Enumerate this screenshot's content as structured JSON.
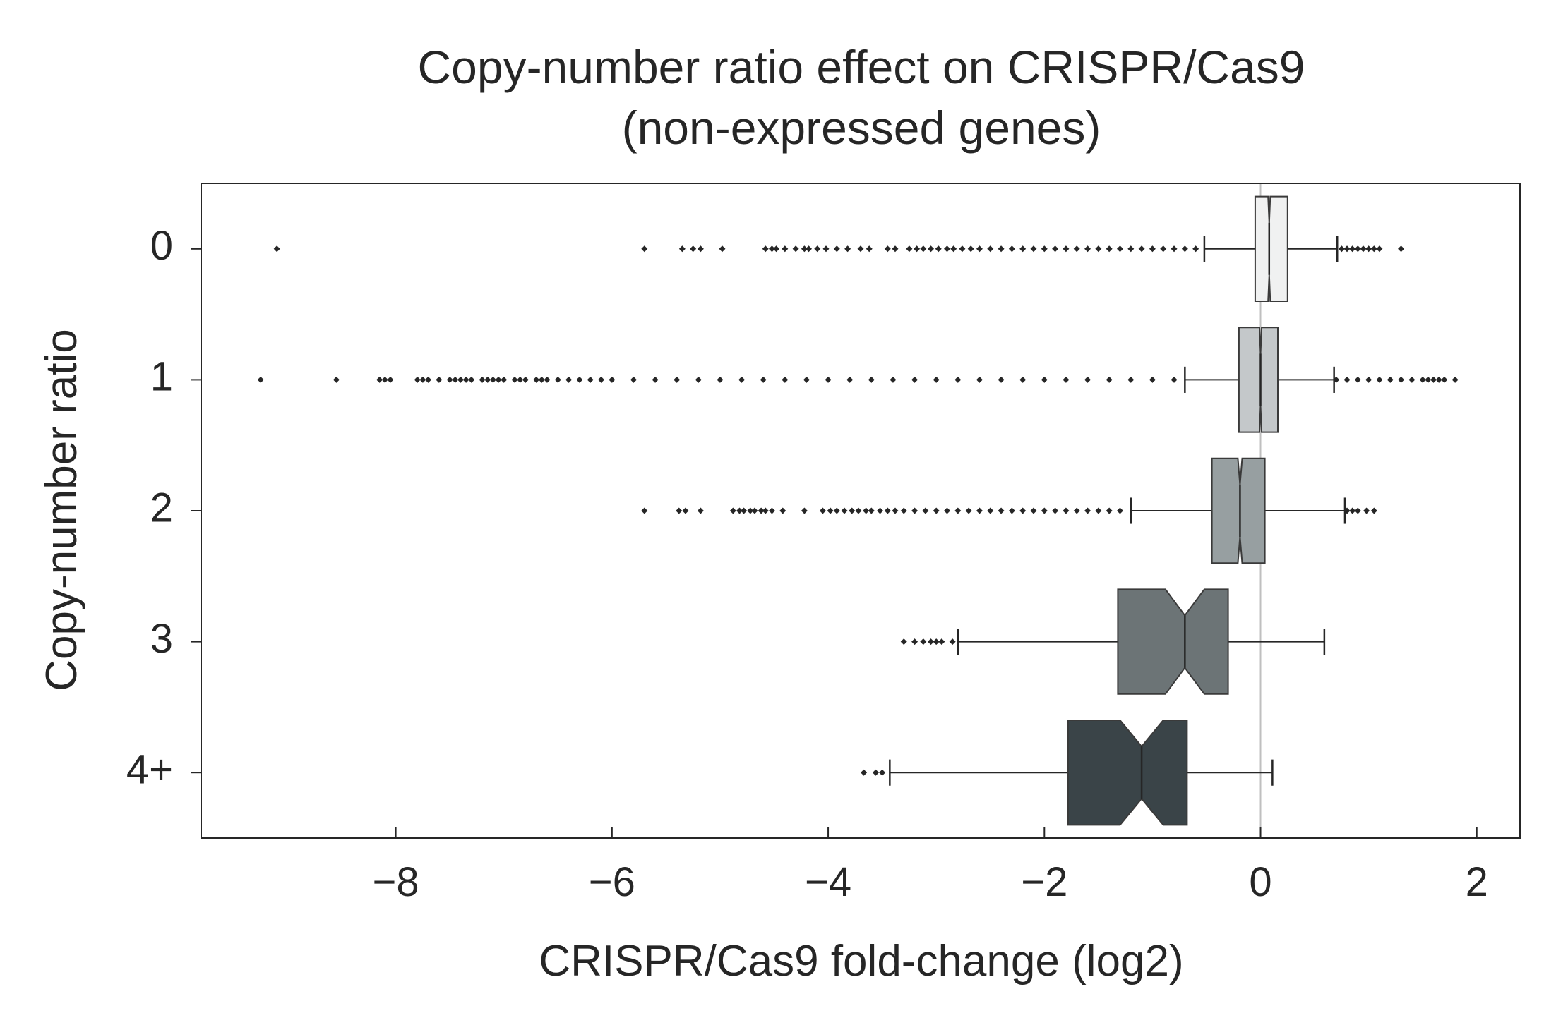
{
  "chart_data": {
    "type": "boxplot",
    "orientation": "horizontal",
    "notched": true,
    "title_lines": [
      "Copy-number ratio effect on CRISPR/Cas9",
      "(non-expressed genes)"
    ],
    "xlabel": "CRISPR/Cas9 fold-change (log2)",
    "ylabel": "Copy-number ratio",
    "xlim": [
      -9.8,
      2.4
    ],
    "xticks": [
      -8,
      -6,
      -4,
      -2,
      0,
      2
    ],
    "xtick_labels": [
      "−8",
      "−6",
      "−4",
      "−2",
      "0",
      "2"
    ],
    "reference_line_x": 0,
    "grid": false,
    "categories": [
      "0",
      "1",
      "2",
      "3",
      "4+"
    ],
    "boxes": [
      {
        "category": "0",
        "color": "#f0f1f1",
        "whisker_low": -0.52,
        "q1": -0.05,
        "notch_low": 0.07,
        "median": 0.08,
        "notch_high": 0.09,
        "q3": 0.25,
        "whisker_high": 0.71,
        "outliers": [
          -9.1,
          -5.7,
          -5.35,
          -5.25,
          -5.18,
          -4.98,
          -4.58,
          -4.52,
          -4.48,
          -4.4,
          -4.3,
          -4.22,
          -4.18,
          -4.1,
          -4.02,
          -3.92,
          -3.82,
          -3.7,
          -3.62,
          -3.45,
          -3.38,
          -3.25,
          -3.18,
          -3.12,
          -3.05,
          -2.98,
          -2.9,
          -2.84,
          -2.76,
          -2.68,
          -2.6,
          -2.5,
          -2.4,
          -2.3,
          -2.2,
          -2.1,
          -2.0,
          -1.9,
          -1.8,
          -1.7,
          -1.6,
          -1.5,
          -1.4,
          -1.3,
          -1.2,
          -1.1,
          -1.0,
          -0.9,
          -0.8,
          -0.7,
          -0.6,
          0.75,
          0.8,
          0.85,
          0.9,
          0.95,
          1.0,
          1.05,
          1.1,
          1.3
        ]
      },
      {
        "category": "1",
        "color": "#c4c8ca",
        "whisker_low": -0.7,
        "q1": -0.2,
        "notch_low": -0.01,
        "median": 0.0,
        "notch_high": 0.01,
        "q3": 0.16,
        "whisker_high": 0.68,
        "outliers": [
          -9.25,
          -8.55,
          -8.15,
          -8.1,
          -8.05,
          -7.8,
          -7.75,
          -7.7,
          -7.6,
          -7.5,
          -7.45,
          -7.4,
          -7.35,
          -7.3,
          -7.2,
          -7.15,
          -7.1,
          -7.05,
          -7.0,
          -6.9,
          -6.85,
          -6.8,
          -6.7,
          -6.65,
          -6.6,
          -6.5,
          -6.4,
          -6.3,
          -6.2,
          -6.1,
          -6.0,
          -5.8,
          -5.6,
          -5.4,
          -5.2,
          -5.0,
          -4.8,
          -4.6,
          -4.4,
          -4.2,
          -4.0,
          -3.8,
          -3.6,
          -3.4,
          -3.2,
          -3.0,
          -2.8,
          -2.6,
          -2.4,
          -2.2,
          -2.0,
          -1.8,
          -1.6,
          -1.4,
          -1.2,
          -1.0,
          -0.8,
          0.7,
          0.8,
          0.9,
          1.0,
          1.1,
          1.2,
          1.3,
          1.4,
          1.5,
          1.55,
          1.6,
          1.65,
          1.7,
          1.8
        ]
      },
      {
        "category": "2",
        "color": "#979fa1",
        "whisker_low": -1.2,
        "q1": -0.45,
        "notch_low": -0.21,
        "median": -0.19,
        "notch_high": -0.17,
        "q3": 0.04,
        "whisker_high": 0.78,
        "outliers": [
          -5.7,
          -5.38,
          -5.32,
          -5.18,
          -4.88,
          -4.82,
          -4.78,
          -4.72,
          -4.68,
          -4.62,
          -4.58,
          -4.52,
          -4.42,
          -4.22,
          -4.05,
          -3.98,
          -3.92,
          -3.85,
          -3.78,
          -3.72,
          -3.65,
          -3.6,
          -3.52,
          -3.45,
          -3.38,
          -3.3,
          -3.2,
          -3.1,
          -3.0,
          -2.9,
          -2.8,
          -2.7,
          -2.6,
          -2.5,
          -2.4,
          -2.3,
          -2.2,
          -2.1,
          -2.0,
          -1.9,
          -1.8,
          -1.7,
          -1.6,
          -1.5,
          -1.4,
          -1.3,
          0.8,
          0.85,
          0.9,
          0.98,
          1.05
        ]
      },
      {
        "category": "3",
        "color": "#6c7476",
        "whisker_low": -2.8,
        "q1": -1.32,
        "notch_low": -0.88,
        "median": -0.7,
        "notch_high": -0.52,
        "q3": -0.3,
        "whisker_high": 0.59,
        "outliers": [
          -3.3,
          -3.2,
          -3.12,
          -3.05,
          -3.0,
          -2.95,
          -2.85
        ]
      },
      {
        "category": "4+",
        "color": "#3a4448",
        "whisker_low": -3.43,
        "q1": -1.78,
        "notch_low": -1.3,
        "median": -1.1,
        "notch_high": -0.9,
        "q3": -0.68,
        "whisker_high": 0.11,
        "outliers": [
          -3.67,
          -3.56,
          -3.5
        ]
      }
    ]
  }
}
